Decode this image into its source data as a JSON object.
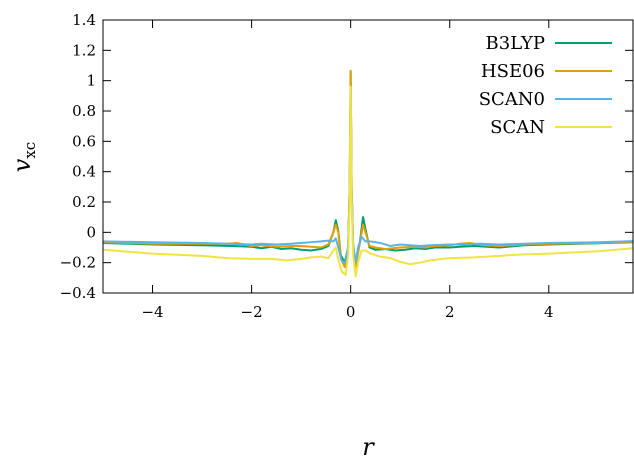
{
  "chart_data": {
    "type": "line",
    "xlabel": "r",
    "ylabel": {
      "main": "v",
      "sub": "xc"
    },
    "xlim": [
      -5.0,
      5.7
    ],
    "ylim": [
      -0.4,
      1.4
    ],
    "xticks": [
      -4,
      -2,
      0,
      2,
      4
    ],
    "xtick_labels": [
      "−4",
      "−2",
      "0",
      "2",
      "4"
    ],
    "yticks": [
      -0.4,
      -0.2,
      0,
      0.2,
      0.4,
      0.6,
      0.8,
      1,
      1.2,
      1.4
    ],
    "ytick_labels": [
      "−0.4",
      "−0.2",
      "0",
      "0.2",
      "0.4",
      "0.6",
      "0.8",
      "1",
      "1.2",
      "1.4"
    ],
    "grid": false,
    "legend_position": "top-right",
    "series": [
      {
        "name": "B3LYP",
        "color": "#009e73",
        "points": [
          [
            -5.0,
            -0.07
          ],
          [
            -4.0,
            -0.08
          ],
          [
            -3.0,
            -0.085
          ],
          [
            -2.4,
            -0.09
          ],
          [
            -2.0,
            -0.095
          ],
          [
            -1.8,
            -0.105
          ],
          [
            -1.6,
            -0.095
          ],
          [
            -1.4,
            -0.11
          ],
          [
            -1.2,
            -0.105
          ],
          [
            -1.0,
            -0.115
          ],
          [
            -0.8,
            -0.12
          ],
          [
            -0.6,
            -0.11
          ],
          [
            -0.45,
            -0.09
          ],
          [
            -0.35,
            0.0
          ],
          [
            -0.3,
            0.08
          ],
          [
            -0.25,
            0.01
          ],
          [
            -0.2,
            -0.15
          ],
          [
            -0.12,
            -0.2
          ],
          [
            -0.05,
            -0.1
          ],
          [
            -0.02,
            0.3
          ],
          [
            0.0,
            1.06
          ],
          [
            0.02,
            0.3
          ],
          [
            0.05,
            -0.1
          ],
          [
            0.1,
            -0.2
          ],
          [
            0.18,
            -0.08
          ],
          [
            0.25,
            0.1
          ],
          [
            0.3,
            0.02
          ],
          [
            0.38,
            -0.1
          ],
          [
            0.5,
            -0.115
          ],
          [
            0.7,
            -0.11
          ],
          [
            0.9,
            -0.12
          ],
          [
            1.1,
            -0.115
          ],
          [
            1.3,
            -0.105
          ],
          [
            1.5,
            -0.11
          ],
          [
            1.7,
            -0.1
          ],
          [
            2.0,
            -0.1
          ],
          [
            2.2,
            -0.095
          ],
          [
            2.5,
            -0.09
          ],
          [
            3.0,
            -0.1
          ],
          [
            3.5,
            -0.085
          ],
          [
            4.0,
            -0.08
          ],
          [
            5.0,
            -0.072
          ],
          [
            5.7,
            -0.065
          ]
        ]
      },
      {
        "name": "HSE06",
        "color": "#e69f00",
        "points": [
          [
            -5.0,
            -0.065
          ],
          [
            -4.0,
            -0.075
          ],
          [
            -3.0,
            -0.075
          ],
          [
            -2.5,
            -0.075
          ],
          [
            -2.3,
            -0.07
          ],
          [
            -2.0,
            -0.09
          ],
          [
            -1.8,
            -0.085
          ],
          [
            -1.5,
            -0.095
          ],
          [
            -1.2,
            -0.09
          ],
          [
            -1.0,
            -0.09
          ],
          [
            -0.8,
            -0.095
          ],
          [
            -0.6,
            -0.1
          ],
          [
            -0.45,
            -0.08
          ],
          [
            -0.35,
            0.0
          ],
          [
            -0.3,
            0.05
          ],
          [
            -0.25,
            0.0
          ],
          [
            -0.2,
            -0.17
          ],
          [
            -0.12,
            -0.23
          ],
          [
            -0.05,
            -0.1
          ],
          [
            -0.02,
            0.3
          ],
          [
            0.0,
            1.065
          ],
          [
            0.02,
            0.3
          ],
          [
            0.05,
            -0.1
          ],
          [
            0.1,
            -0.23
          ],
          [
            0.18,
            -0.08
          ],
          [
            0.25,
            0.05
          ],
          [
            0.3,
            0.0
          ],
          [
            0.38,
            -0.09
          ],
          [
            0.5,
            -0.1
          ],
          [
            0.7,
            -0.11
          ],
          [
            1.0,
            -0.1
          ],
          [
            1.3,
            -0.095
          ],
          [
            1.5,
            -0.1
          ],
          [
            1.7,
            -0.09
          ],
          [
            2.0,
            -0.085
          ],
          [
            2.2,
            -0.075
          ],
          [
            2.4,
            -0.07
          ],
          [
            2.7,
            -0.085
          ],
          [
            3.0,
            -0.09
          ],
          [
            3.5,
            -0.08
          ],
          [
            4.0,
            -0.075
          ],
          [
            5.0,
            -0.07
          ],
          [
            5.7,
            -0.062
          ]
        ]
      },
      {
        "name": "SCAN0",
        "color": "#56b4e9",
        "points": [
          [
            -5.0,
            -0.06
          ],
          [
            -4.0,
            -0.065
          ],
          [
            -3.0,
            -0.07
          ],
          [
            -2.5,
            -0.075
          ],
          [
            -2.0,
            -0.08
          ],
          [
            -1.8,
            -0.075
          ],
          [
            -1.5,
            -0.08
          ],
          [
            -1.2,
            -0.075
          ],
          [
            -1.0,
            -0.07
          ],
          [
            -0.8,
            -0.065
          ],
          [
            -0.6,
            -0.06
          ],
          [
            -0.45,
            -0.055
          ],
          [
            -0.35,
            -0.06
          ],
          [
            -0.3,
            -0.04
          ],
          [
            -0.25,
            -0.1
          ],
          [
            -0.18,
            -0.19
          ],
          [
            -0.1,
            -0.2
          ],
          [
            -0.05,
            -0.08
          ],
          [
            -0.02,
            0.25
          ],
          [
            0.0,
            0.96
          ],
          [
            0.02,
            0.25
          ],
          [
            0.05,
            -0.08
          ],
          [
            0.1,
            -0.2
          ],
          [
            0.15,
            -0.1
          ],
          [
            0.22,
            -0.03
          ],
          [
            0.3,
            -0.06
          ],
          [
            0.4,
            -0.06
          ],
          [
            0.6,
            -0.07
          ],
          [
            0.8,
            -0.09
          ],
          [
            1.0,
            -0.08
          ],
          [
            1.2,
            -0.085
          ],
          [
            1.4,
            -0.09
          ],
          [
            1.6,
            -0.085
          ],
          [
            2.0,
            -0.08
          ],
          [
            2.3,
            -0.08
          ],
          [
            2.6,
            -0.075
          ],
          [
            3.0,
            -0.08
          ],
          [
            3.5,
            -0.075
          ],
          [
            4.0,
            -0.07
          ],
          [
            5.0,
            -0.065
          ],
          [
            5.7,
            -0.058
          ]
        ]
      },
      {
        "name": "SCAN",
        "color": "#f0e442",
        "points": [
          [
            -5.0,
            -0.115
          ],
          [
            -4.0,
            -0.14
          ],
          [
            -3.0,
            -0.155
          ],
          [
            -2.5,
            -0.17
          ],
          [
            -2.0,
            -0.175
          ],
          [
            -1.6,
            -0.175
          ],
          [
            -1.3,
            -0.185
          ],
          [
            -1.0,
            -0.175
          ],
          [
            -0.8,
            -0.165
          ],
          [
            -0.6,
            -0.16
          ],
          [
            -0.45,
            -0.17
          ],
          [
            -0.35,
            -0.12
          ],
          [
            -0.3,
            -0.1
          ],
          [
            -0.25,
            -0.18
          ],
          [
            -0.18,
            -0.26
          ],
          [
            -0.1,
            -0.28
          ],
          [
            -0.05,
            -0.15
          ],
          [
            -0.02,
            0.2
          ],
          [
            0.0,
            0.96
          ],
          [
            0.02,
            0.2
          ],
          [
            0.05,
            -0.15
          ],
          [
            0.1,
            -0.29
          ],
          [
            0.15,
            -0.2
          ],
          [
            0.22,
            -0.12
          ],
          [
            0.3,
            -0.12
          ],
          [
            0.4,
            -0.14
          ],
          [
            0.6,
            -0.16
          ],
          [
            0.8,
            -0.17
          ],
          [
            1.0,
            -0.195
          ],
          [
            1.2,
            -0.21
          ],
          [
            1.4,
            -0.2
          ],
          [
            1.6,
            -0.185
          ],
          [
            2.0,
            -0.17
          ],
          [
            2.5,
            -0.165
          ],
          [
            3.0,
            -0.155
          ],
          [
            3.5,
            -0.145
          ],
          [
            4.0,
            -0.14
          ],
          [
            5.0,
            -0.125
          ],
          [
            5.7,
            -0.105
          ]
        ]
      }
    ]
  }
}
